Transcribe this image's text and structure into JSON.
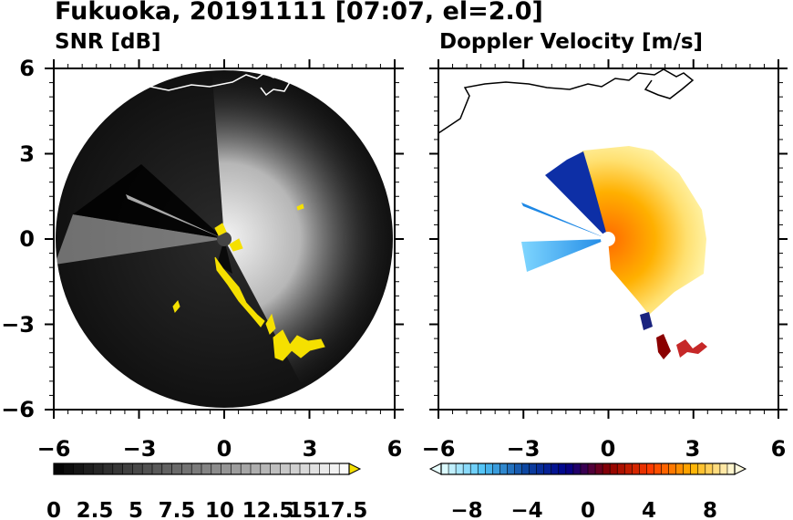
{
  "title": "Fukuoka, 20191111 [07:07, el=2.0]",
  "chart_data": [
    {
      "type": "heatmap",
      "title": "SNR [dB]",
      "xlim": [
        -6,
        6
      ],
      "ylim": [
        -6,
        6
      ],
      "xticks": [
        "−6",
        "−3",
        "0",
        "3",
        "6"
      ],
      "yticks": [
        "6",
        "3",
        "0",
        "−3",
        "−6"
      ],
      "grid": false,
      "radar_range_max": 5.9,
      "colorbar": {
        "labels": [
          "0",
          "2.5",
          "5",
          "7.5",
          "10",
          "12.5",
          "15",
          "17.5"
        ],
        "min": 0,
        "max": 18.75,
        "extend": "max",
        "colors": [
          "#000000",
          "#ffffff",
          "#f5e000"
        ]
      }
    },
    {
      "type": "heatmap",
      "title": "Doppler Velocity [m/s]",
      "xlim": [
        -6,
        6
      ],
      "ylim": [
        -6,
        6
      ],
      "xticks": [
        "−6",
        "−3",
        "0",
        "3",
        "6"
      ],
      "grid": false,
      "colorbar": {
        "labels": [
          "−8",
          "−4",
          "0",
          "4",
          "8"
        ],
        "min": -10,
        "max": 10,
        "extend": "both",
        "colors": [
          "#e8ffff",
          "#4fc3f7",
          "#0d47a1",
          "#00008b",
          "#8b0000",
          "#ff3c00",
          "#ffb300",
          "#fffbe0"
        ]
      }
    }
  ]
}
